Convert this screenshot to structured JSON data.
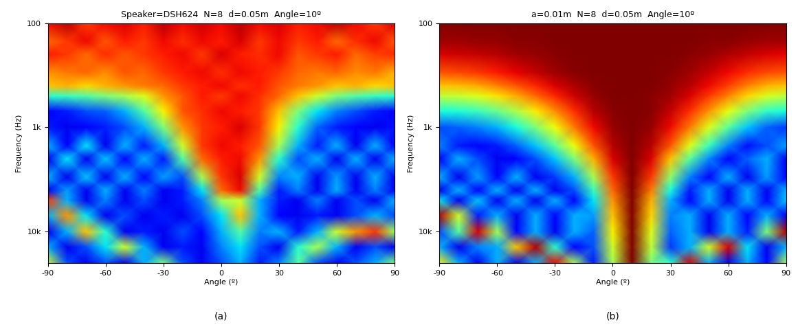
{
  "chart_data": [
    {
      "type": "heatmap",
      "title": "Speaker=DSH624  N=8  d=0.05m  Angle=10º",
      "x_label": "Angle (º)",
      "y_label": "Frequency (Hz)",
      "caption": "(a)",
      "log": "y",
      "xlim": [
        -90,
        90
      ],
      "xticks": [
        -90,
        -60,
        -30,
        0,
        30,
        60,
        90
      ],
      "ylim": [
        100,
        20000
      ],
      "yticks": [
        100,
        {
          "value": 1000,
          "label": "1k"
        },
        {
          "value": 10000,
          "label": "10k"
        }
      ],
      "color_range": [
        0,
        1
      ],
      "x": [
        -90,
        -80,
        -70,
        -60,
        -50,
        -40,
        -30,
        -20,
        -10,
        0,
        10,
        20,
        30,
        40,
        50,
        60,
        70,
        80,
        90
      ],
      "y": [
        100,
        150,
        200,
        300,
        400,
        500,
        700,
        1000,
        1500,
        2000,
        3000,
        4000,
        5000,
        7000,
        10000,
        14000,
        20000
      ],
      "cells": [
        [
          0.9,
          0.95,
          0.85,
          0.9,
          0.92,
          0.88,
          0.95,
          0.9,
          0.93,
          0.9,
          0.95,
          0.9,
          0.92,
          0.88,
          0.9,
          0.95,
          0.9,
          0.85,
          0.92
        ],
        [
          0.8,
          0.85,
          0.9,
          0.82,
          0.88,
          0.85,
          0.9,
          0.86,
          0.9,
          0.88,
          0.92,
          0.85,
          0.9,
          0.85,
          0.88,
          0.8,
          0.86,
          0.9,
          0.82
        ],
        [
          0.88,
          0.85,
          0.8,
          0.86,
          0.82,
          0.85,
          0.88,
          0.9,
          0.85,
          0.92,
          0.88,
          0.86,
          0.9,
          0.82,
          0.85,
          0.88,
          0.8,
          0.84,
          0.86
        ],
        [
          0.75,
          0.78,
          0.8,
          0.76,
          0.82,
          0.8,
          0.85,
          0.88,
          0.9,
          0.86,
          0.9,
          0.88,
          0.85,
          0.8,
          0.78,
          0.8,
          0.76,
          0.78,
          0.72
        ],
        [
          0.7,
          0.72,
          0.68,
          0.72,
          0.75,
          0.78,
          0.8,
          0.85,
          0.88,
          0.9,
          0.86,
          0.88,
          0.82,
          0.78,
          0.75,
          0.7,
          0.72,
          0.68,
          0.7
        ],
        [
          0.4,
          0.42,
          0.45,
          0.5,
          0.55,
          0.62,
          0.75,
          0.82,
          0.88,
          0.85,
          0.9,
          0.86,
          0.8,
          0.7,
          0.6,
          0.5,
          0.45,
          0.42,
          0.4
        ],
        [
          0.12,
          0.15,
          0.2,
          0.22,
          0.3,
          0.45,
          0.65,
          0.82,
          0.86,
          0.9,
          0.88,
          0.85,
          0.7,
          0.5,
          0.35,
          0.25,
          0.2,
          0.15,
          0.12
        ],
        [
          0.15,
          0.1,
          0.12,
          0.15,
          0.2,
          0.3,
          0.5,
          0.75,
          0.85,
          0.88,
          0.92,
          0.85,
          0.65,
          0.4,
          0.22,
          0.15,
          0.12,
          0.1,
          0.14
        ],
        [
          0.3,
          0.12,
          0.35,
          0.1,
          0.3,
          0.15,
          0.3,
          0.6,
          0.85,
          0.9,
          0.88,
          0.82,
          0.55,
          0.3,
          0.15,
          0.3,
          0.1,
          0.3,
          0.12
        ],
        [
          0.1,
          0.35,
          0.1,
          0.32,
          0.12,
          0.3,
          0.15,
          0.45,
          0.8,
          0.88,
          0.9,
          0.75,
          0.4,
          0.2,
          0.3,
          0.1,
          0.3,
          0.1,
          0.3
        ],
        [
          0.3,
          0.1,
          0.32,
          0.1,
          0.3,
          0.12,
          0.28,
          0.2,
          0.55,
          0.85,
          0.92,
          0.6,
          0.25,
          0.3,
          0.1,
          0.28,
          0.1,
          0.3,
          0.1
        ],
        [
          0.1,
          0.28,
          0.1,
          0.3,
          0.1,
          0.25,
          0.1,
          0.15,
          0.35,
          0.8,
          0.9,
          0.45,
          0.15,
          0.25,
          0.1,
          0.3,
          0.1,
          0.25,
          0.1
        ],
        [
          0.85,
          0.3,
          0.1,
          0.25,
          0.1,
          0.2,
          0.1,
          0.15,
          0.25,
          0.55,
          0.6,
          0.3,
          0.15,
          0.1,
          0.25,
          0.1,
          0.2,
          0.1,
          0.3
        ],
        [
          0.3,
          0.75,
          0.35,
          0.1,
          0.2,
          0.1,
          0.15,
          0.1,
          0.2,
          0.35,
          0.7,
          0.3,
          0.12,
          0.1,
          0.15,
          0.1,
          0.2,
          0.3,
          0.2
        ],
        [
          0.1,
          0.3,
          0.7,
          0.4,
          0.1,
          0.15,
          0.1,
          0.2,
          0.12,
          0.3,
          0.45,
          0.25,
          0.3,
          0.15,
          0.3,
          0.6,
          0.75,
          0.85,
          0.55
        ],
        [
          0.3,
          0.1,
          0.2,
          0.35,
          0.6,
          0.3,
          0.1,
          0.15,
          0.1,
          0.25,
          0.35,
          0.2,
          0.1,
          0.4,
          0.55,
          0.3,
          0.1,
          0.2,
          0.1
        ],
        [
          0.6,
          0.2,
          0.1,
          0.2,
          0.1,
          0.3,
          0.5,
          0.2,
          0.1,
          0.2,
          0.3,
          0.15,
          0.25,
          0.45,
          0.2,
          0.1,
          0.2,
          0.3,
          0.5
        ]
      ]
    },
    {
      "type": "heatmap",
      "title": "a=0.01m  N=8  d=0.05m  Angle=10º",
      "x_label": "Angle (º)",
      "y_label": "Frequency (Hz)",
      "caption": "(b)",
      "log": "y",
      "xlim": [
        -90,
        90
      ],
      "xticks": [
        -90,
        -60,
        -30,
        0,
        30,
        60,
        90
      ],
      "ylim": [
        100,
        20000
      ],
      "yticks": [
        100,
        {
          "value": 1000,
          "label": "1k"
        },
        {
          "value": 10000,
          "label": "10k"
        }
      ],
      "color_range": [
        0,
        1
      ],
      "x": [
        -90,
        -80,
        -70,
        -60,
        -50,
        -40,
        -30,
        -20,
        -10,
        0,
        10,
        20,
        30,
        40,
        50,
        60,
        70,
        80,
        90
      ],
      "y": [
        100,
        150,
        200,
        300,
        400,
        500,
        700,
        1000,
        1500,
        2000,
        3000,
        4000,
        5000,
        7000,
        10000,
        14000,
        20000
      ],
      "cells": [
        [
          1,
          1,
          1,
          1,
          1,
          1,
          1,
          1,
          1,
          1,
          1,
          1,
          1,
          1,
          1,
          1,
          1,
          1,
          1
        ],
        [
          0.97,
          0.97,
          0.98,
          0.98,
          0.99,
          0.99,
          1,
          1,
          1,
          1,
          1,
          1,
          1,
          1,
          0.99,
          0.99,
          0.98,
          0.97,
          0.97
        ],
        [
          0.92,
          0.93,
          0.94,
          0.95,
          0.97,
          0.98,
          0.99,
          1,
          1,
          1,
          1,
          1,
          1,
          0.99,
          0.98,
          0.96,
          0.94,
          0.92,
          0.91
        ],
        [
          0.82,
          0.83,
          0.85,
          0.88,
          0.91,
          0.94,
          0.97,
          0.99,
          1,
          1,
          1,
          1,
          0.99,
          0.97,
          0.94,
          0.9,
          0.86,
          0.83,
          0.82
        ],
        [
          0.7,
          0.71,
          0.73,
          0.77,
          0.82,
          0.87,
          0.92,
          0.96,
          0.99,
          1,
          1,
          1,
          0.98,
          0.95,
          0.9,
          0.84,
          0.77,
          0.72,
          0.7
        ],
        [
          0.58,
          0.59,
          0.62,
          0.67,
          0.73,
          0.8,
          0.87,
          0.93,
          0.98,
          1,
          1,
          0.99,
          0.97,
          0.92,
          0.85,
          0.77,
          0.68,
          0.61,
          0.58
        ],
        [
          0.38,
          0.39,
          0.42,
          0.48,
          0.56,
          0.66,
          0.76,
          0.86,
          0.95,
          0.99,
          1,
          0.99,
          0.94,
          0.86,
          0.75,
          0.63,
          0.5,
          0.41,
          0.38
        ],
        [
          0.2,
          0.22,
          0.25,
          0.3,
          0.38,
          0.5,
          0.64,
          0.78,
          0.9,
          0.98,
          1,
          0.98,
          0.9,
          0.78,
          0.62,
          0.46,
          0.32,
          0.22,
          0.18
        ],
        [
          0.25,
          0.15,
          0.12,
          0.15,
          0.22,
          0.32,
          0.46,
          0.64,
          0.82,
          0.95,
          1,
          0.95,
          0.82,
          0.62,
          0.42,
          0.25,
          0.14,
          0.2,
          0.28
        ],
        [
          0.12,
          0.3,
          0.2,
          0.1,
          0.12,
          0.2,
          0.32,
          0.5,
          0.72,
          0.92,
          1,
          0.92,
          0.7,
          0.46,
          0.26,
          0.12,
          0.22,
          0.3,
          0.1
        ],
        [
          0.3,
          0.1,
          0.28,
          0.12,
          0.3,
          0.1,
          0.18,
          0.3,
          0.55,
          0.85,
          1,
          0.85,
          0.52,
          0.25,
          0.12,
          0.3,
          0.1,
          0.28,
          0.12
        ],
        [
          0.1,
          0.3,
          0.12,
          0.3,
          0.1,
          0.3,
          0.1,
          0.2,
          0.42,
          0.8,
          1,
          0.78,
          0.38,
          0.15,
          0.3,
          0.1,
          0.3,
          0.1,
          0.3
        ],
        [
          0.35,
          0.1,
          0.32,
          0.1,
          0.3,
          0.1,
          0.3,
          0.12,
          0.35,
          0.75,
          1,
          0.72,
          0.3,
          0.12,
          0.3,
          0.1,
          0.3,
          0.12,
          0.32
        ],
        [
          0.95,
          0.6,
          0.15,
          0.3,
          0.1,
          0.3,
          0.12,
          0.3,
          0.28,
          0.7,
          1,
          0.68,
          0.25,
          0.3,
          0.1,
          0.3,
          0.12,
          0.3,
          0.1
        ],
        [
          0.2,
          0.45,
          0.92,
          0.55,
          0.12,
          0.3,
          0.1,
          0.3,
          0.22,
          0.65,
          1,
          0.62,
          0.22,
          0.3,
          0.1,
          0.3,
          0.15,
          0.5,
          0.95
        ],
        [
          0.3,
          0.1,
          0.25,
          0.3,
          0.7,
          0.95,
          0.4,
          0.12,
          0.2,
          0.6,
          1,
          0.58,
          0.18,
          0.3,
          0.6,
          0.92,
          0.35,
          0.1,
          0.3
        ],
        [
          0.65,
          0.3,
          0.1,
          0.3,
          0.1,
          0.3,
          0.9,
          0.55,
          0.15,
          0.55,
          1,
          0.5,
          0.4,
          0.92,
          0.3,
          0.1,
          0.3,
          0.12,
          0.55
        ]
      ]
    }
  ]
}
